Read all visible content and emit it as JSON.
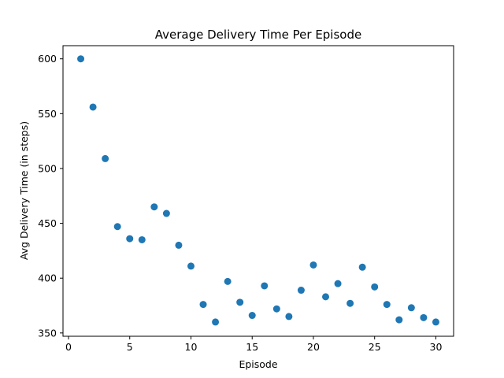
{
  "chart_data": {
    "type": "scatter",
    "title": "Average Delivery Time Per Episode",
    "xlabel": "Episode",
    "ylabel": "Avg Delivery Time (in steps)",
    "xlim": [
      -0.45,
      31.45
    ],
    "ylim": [
      347,
      612
    ],
    "xticks": [
      0,
      5,
      10,
      15,
      20,
      25,
      30
    ],
    "yticks": [
      350,
      400,
      450,
      500,
      550,
      600
    ],
    "grid": false,
    "marker_color": "#1f77b4",
    "series": [
      {
        "x": [
          1,
          2,
          3,
          4,
          5,
          6,
          7,
          8,
          9,
          10,
          11,
          12,
          13,
          14,
          15,
          16,
          17,
          18,
          19,
          20,
          21,
          22,
          23,
          24,
          25,
          26,
          27,
          28,
          29,
          30
        ],
        "y": [
          600,
          556,
          509,
          447,
          436,
          435,
          465,
          459,
          430,
          411,
          376,
          360,
          397,
          378,
          366,
          393,
          372,
          365,
          389,
          412,
          383,
          395,
          377,
          410,
          392,
          376,
          362,
          373,
          364,
          360
        ]
      }
    ]
  }
}
